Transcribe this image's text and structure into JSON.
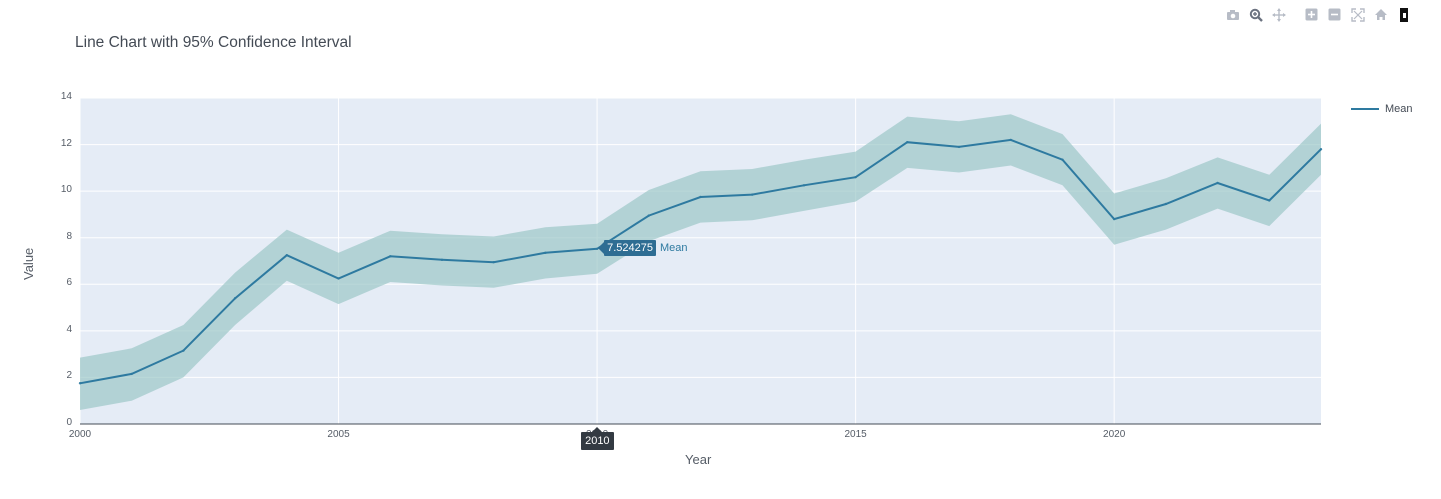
{
  "toolbar": {
    "buttons": [
      {
        "name": "camera-icon",
        "label": "Download plot as a png"
      },
      {
        "name": "zoom-icon",
        "label": "Zoom"
      },
      {
        "name": "pan-icon",
        "label": "Pan"
      },
      {
        "name": "zoom-in-icon",
        "label": "Zoom in"
      },
      {
        "name": "zoom-out-icon",
        "label": "Zoom out"
      },
      {
        "name": "autoscale-icon",
        "label": "Autoscale"
      },
      {
        "name": "home-icon",
        "label": "Reset axes"
      },
      {
        "name": "plotly-logo-icon",
        "label": "Produced with Plotly"
      }
    ]
  },
  "chart_data": {
    "type": "line",
    "title": "Line Chart with 95% Confidence Interval",
    "xlabel": "Year",
    "ylabel": "Value",
    "xlim": [
      2000,
      2024
    ],
    "ylim": [
      0,
      14
    ],
    "x_ticks": [
      "2000",
      "2005",
      "2010",
      "2015",
      "2020"
    ],
    "y_ticks": [
      "0",
      "2",
      "4",
      "6",
      "8",
      "10",
      "12",
      "14"
    ],
    "grid": true,
    "legend_position": "top-right",
    "x": [
      2000,
      2001,
      2002,
      2003,
      2004,
      2005,
      2006,
      2007,
      2008,
      2009,
      2010,
      2011,
      2012,
      2013,
      2014,
      2015,
      2016,
      2017,
      2018,
      2019,
      2020,
      2021,
      2022,
      2023,
      2024
    ],
    "series": [
      {
        "name": "Mean",
        "color": "#2e7aa0",
        "values": [
          1.75,
          2.15,
          3.15,
          5.4,
          7.25,
          6.25,
          7.2,
          7.05,
          6.95,
          7.35,
          7.524275,
          8.95,
          9.75,
          9.85,
          10.25,
          10.6,
          12.1,
          11.9,
          12.2,
          11.35,
          8.8,
          9.45,
          10.35,
          9.6,
          11.8
        ],
        "lower": [
          0.6,
          1.0,
          2.0,
          4.25,
          6.15,
          5.15,
          6.1,
          5.95,
          5.85,
          6.25,
          6.45,
          7.85,
          8.65,
          8.75,
          9.15,
          9.55,
          11.0,
          10.8,
          11.1,
          10.25,
          7.7,
          8.35,
          9.25,
          8.5,
          10.7
        ],
        "upper": [
          2.85,
          3.25,
          4.25,
          6.5,
          8.35,
          7.35,
          8.3,
          8.15,
          8.05,
          8.45,
          8.6,
          10.05,
          10.85,
          10.95,
          11.35,
          11.7,
          13.2,
          13.0,
          13.3,
          12.45,
          9.9,
          10.55,
          11.45,
          10.7,
          12.9
        ]
      }
    ],
    "band_color": "#9cc8c8",
    "hover": {
      "x_label": "2010",
      "value_label": "7.524275",
      "series_label": "Mean"
    }
  },
  "colors": {
    "plot_bg": "#e5ecf6",
    "grid": "#ffffff",
    "line": "#2e7aa0",
    "band": "#9cc8c8"
  }
}
